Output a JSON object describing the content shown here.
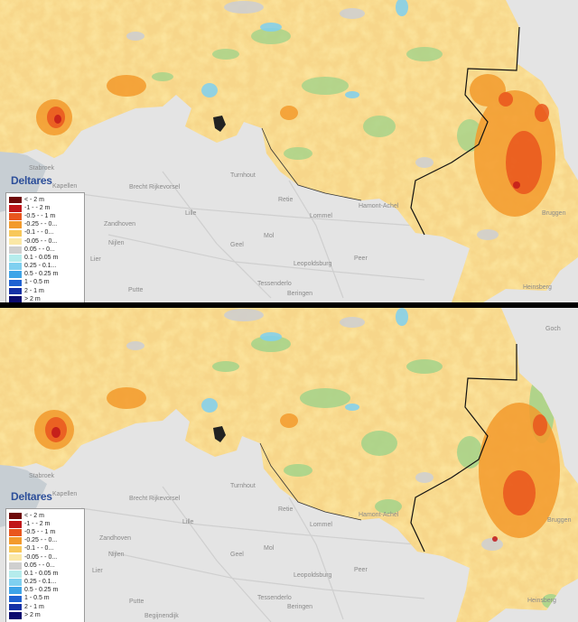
{
  "brand": "Deltares",
  "legend": {
    "items": [
      {
        "label": "< - 2 m",
        "color": "#6e0a0a"
      },
      {
        "label": "-1 - - 2 m",
        "color": "#c0161a"
      },
      {
        "label": "-0.5 - - 1 m",
        "color": "#e9561e"
      },
      {
        "label": "-0.25 - - 0...",
        "color": "#f39a2c"
      },
      {
        "label": "-0.1 - - 0...",
        "color": "#f8c85a"
      },
      {
        "label": "-0.05 - - 0...",
        "color": "#fbe8a6"
      },
      {
        "label": "0.05 - - 0...",
        "color": "#cfcfcf"
      },
      {
        "label": "0.1 - 0.05 m",
        "color": "#b5ecec"
      },
      {
        "label": "0.25 - 0.1...",
        "color": "#7fd0f0"
      },
      {
        "label": "0.5 - 0.25 m",
        "color": "#3ea4e8"
      },
      {
        "label": "1 - 0.5 m",
        "color": "#1f62d2"
      },
      {
        "label": "2 - 1 m",
        "color": "#1531a6"
      },
      {
        "label": "> 2 m",
        "color": "#0b0b6e"
      }
    ]
  },
  "place_names": {
    "top": [
      "Stabroek",
      "Kapellen",
      "Brecht",
      "Rijkevorsel",
      "Turnhout",
      "Zandhoven",
      "Lille",
      "Nijlen",
      "Lier",
      "Geel",
      "Mol",
      "Retie",
      "Lommel",
      "Leopoldsburg",
      "Peer",
      "Putte",
      "Tessenderlo",
      "Beringen",
      "Hamont-Achel",
      "Bruggen",
      "Heinsberg"
    ],
    "bottom": [
      "Goch",
      "Stabroek",
      "Kapellen",
      "Brecht",
      "Rijkevorsel",
      "Turnhout",
      "Zandhoven",
      "Lille",
      "Nijlen",
      "Lier",
      "Geel",
      "Mol",
      "Retie",
      "Lommel",
      "Leopoldsburg",
      "Peer",
      "Putte",
      "Tessenderlo",
      "Beringen",
      "Begijnendijk",
      "Hamont-Achel",
      "Bruggen",
      "Heinsberg"
    ]
  }
}
